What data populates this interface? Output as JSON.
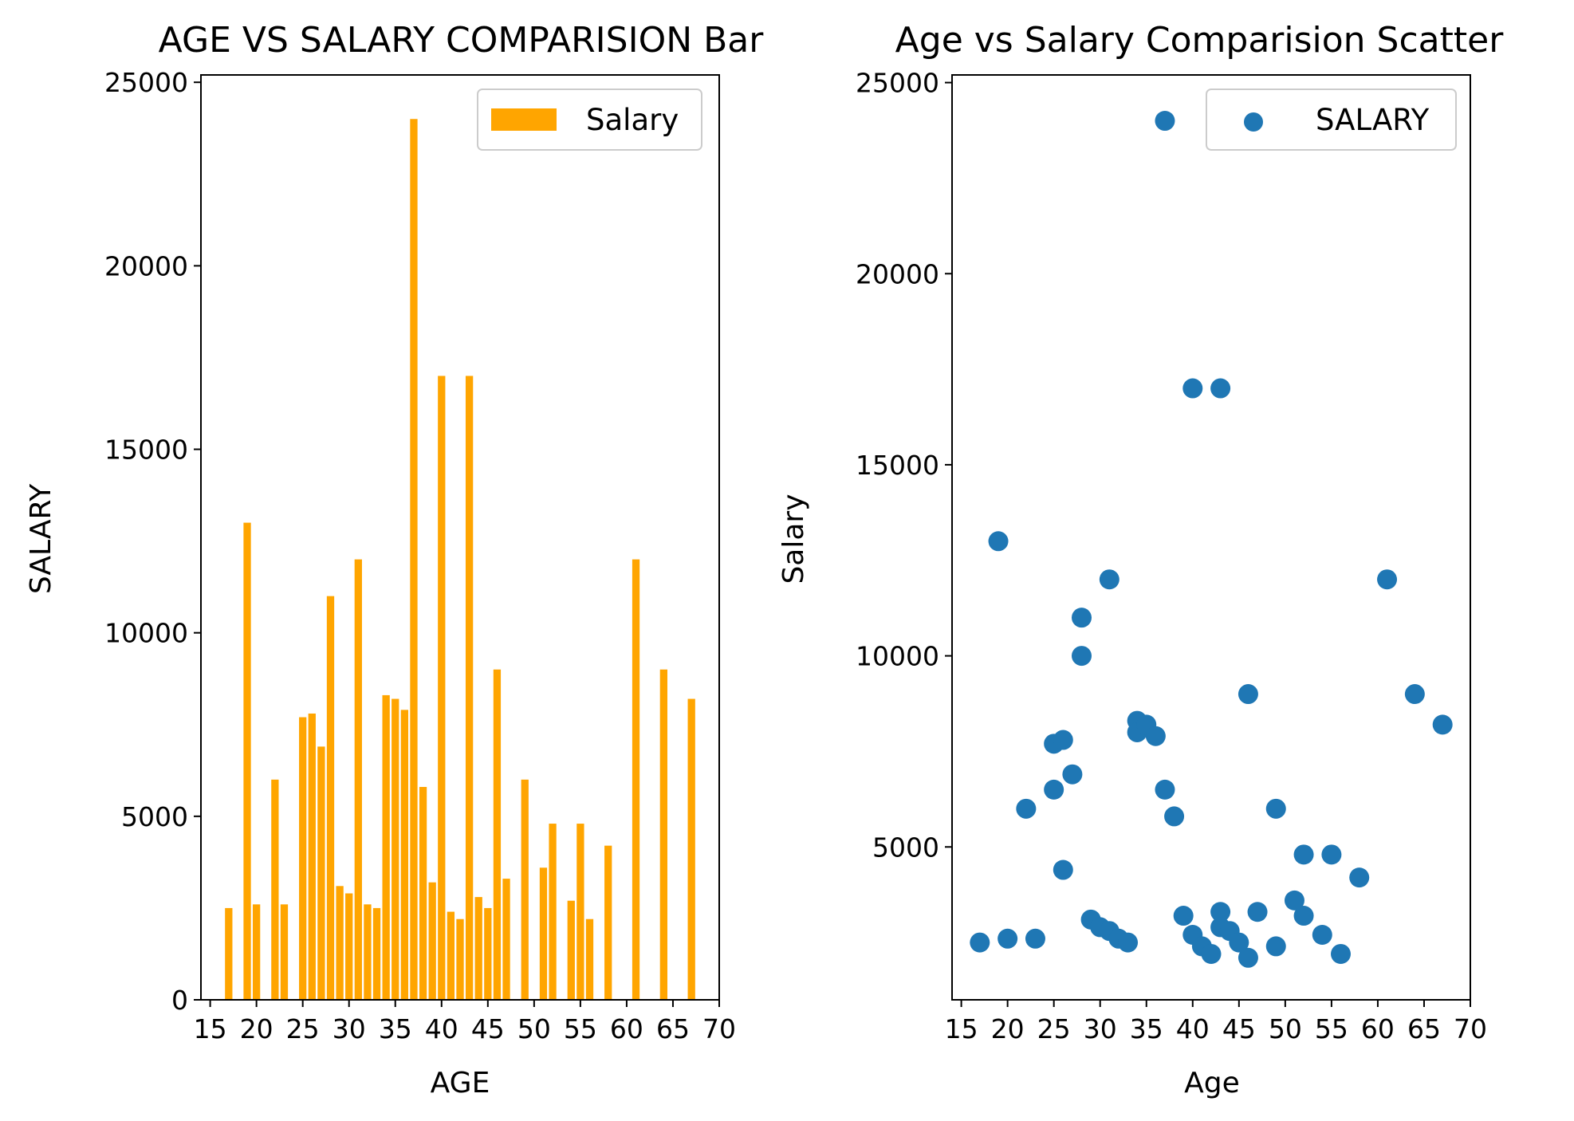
{
  "chart_data": [
    {
      "type": "bar",
      "title": "AGE VS SALARY COMPARISION Bar",
      "xlabel": "AGE",
      "ylabel": "SALARY",
      "xlim": [
        14,
        70
      ],
      "ylim": [
        0,
        25200
      ],
      "xticks": [
        15,
        20,
        25,
        30,
        35,
        40,
        45,
        50,
        55,
        60,
        65,
        70
      ],
      "yticks": [
        0,
        5000,
        10000,
        15000,
        20000,
        25000
      ],
      "legend": {
        "label": "Salary",
        "position": "top-right"
      },
      "color": "#ffa500",
      "x": [
        17,
        19,
        20,
        22,
        23,
        25,
        26,
        27,
        28,
        29,
        30,
        31,
        32,
        33,
        34,
        35,
        36,
        37,
        38,
        39,
        40,
        41,
        42,
        43,
        44,
        45,
        46,
        47,
        49,
        51,
        52,
        54,
        55,
        56,
        58,
        61,
        64,
        67
      ],
      "values": [
        2500,
        13000,
        2600,
        6000,
        2600,
        7700,
        7800,
        6900,
        11000,
        3100,
        2900,
        12000,
        2600,
        2500,
        8300,
        8200,
        7900,
        24000,
        5800,
        3200,
        17000,
        2400,
        2200,
        17000,
        2800,
        2500,
        9000,
        3300,
        6000,
        3600,
        4800,
        2700,
        4800,
        2200,
        4200,
        12000,
        9000,
        8200
      ]
    },
    {
      "type": "scatter",
      "title": "Age vs Salary Comparision Scatter",
      "xlabel": "Age",
      "ylabel": "Salary",
      "xlim": [
        14,
        70
      ],
      "ylim": [
        1000,
        25200
      ],
      "xticks": [
        15,
        20,
        25,
        30,
        35,
        40,
        45,
        50,
        55,
        60,
        65,
        70
      ],
      "yticks": [
        5000,
        10000,
        15000,
        20000,
        25000
      ],
      "legend": {
        "label": "SALARY",
        "position": "top-right"
      },
      "color": "#1f77b4",
      "x": [
        17,
        19,
        20,
        22,
        23,
        25,
        25,
        26,
        26,
        27,
        28,
        28,
        29,
        30,
        31,
        31,
        32,
        33,
        34,
        34,
        35,
        36,
        37,
        37,
        38,
        39,
        40,
        40,
        41,
        42,
        43,
        43,
        43,
        44,
        45,
        46,
        46,
        47,
        49,
        49,
        51,
        52,
        52,
        54,
        55,
        56,
        58,
        61,
        64,
        67
      ],
      "y": [
        2500,
        13000,
        2600,
        6000,
        2600,
        6500,
        7700,
        7800,
        4400,
        6900,
        11000,
        10000,
        3100,
        2900,
        12000,
        2800,
        2600,
        2500,
        8300,
        8000,
        8200,
        7900,
        24000,
        6500,
        5800,
        3200,
        17000,
        2700,
        2400,
        2200,
        17000,
        3300,
        2900,
        2800,
        2500,
        9000,
        2100,
        3300,
        6000,
        2400,
        3600,
        4800,
        3200,
        2700,
        4800,
        2200,
        4200,
        12000,
        9000,
        8200
      ]
    }
  ]
}
